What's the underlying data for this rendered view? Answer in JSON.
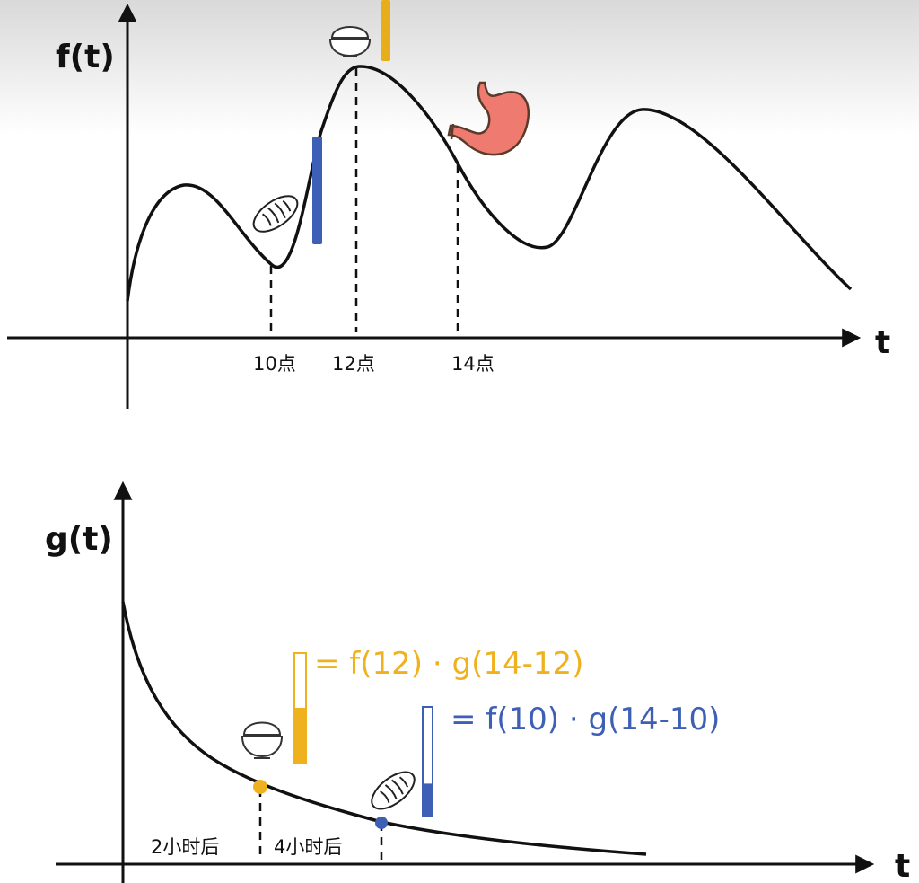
{
  "top_chart": {
    "y_label": "f(t)",
    "x_label": "t",
    "ticks": [
      "10点",
      "12点",
      "14点"
    ],
    "icons": {
      "bread": "bread-icon",
      "rice": "rice-bowl-icon",
      "stomach": "stomach-icon"
    },
    "colors": {
      "rice_bar": "#e8ad1b",
      "bread_bar": "#3d5fb5",
      "stomach": "#ee7a70"
    }
  },
  "bottom_chart": {
    "y_label": "g(t)",
    "x_label": "t",
    "ticks": [
      "2小时后",
      "4小时后"
    ],
    "formula_rice": "= f(12) · g(14-12)",
    "formula_bread": "= f(10) · g(14-10)",
    "icons": {
      "rice": "rice-bowl-icon",
      "bread": "bread-icon"
    },
    "colors": {
      "rice": "#efb21e",
      "bread": "#3d5fb5"
    },
    "bar_fill": {
      "rice": 0.5,
      "bread": 0.3
    }
  }
}
